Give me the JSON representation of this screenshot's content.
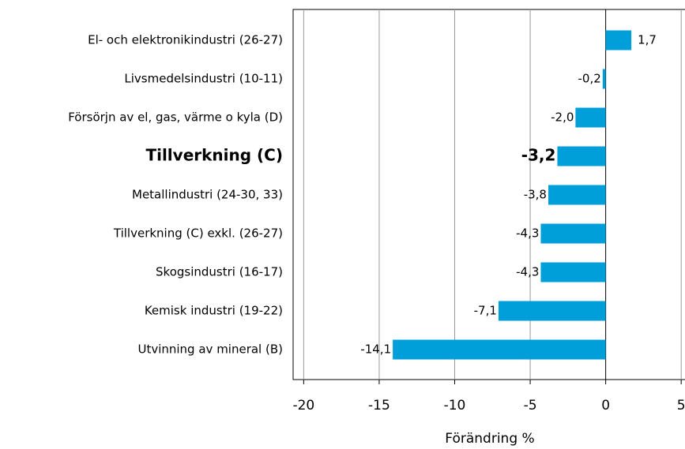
{
  "chart_data": {
    "type": "hbar",
    "categories": [
      "El- och elektronikindustri (26-27)",
      "Livsmedelsindustri (10-11)",
      "Försörjn av el, gas, värme o kyla (D)",
      "Tillverkning (C)",
      "Metallindustri (24-30, 33)",
      "Tillverkning (C) exkl. (26-27)",
      "Skogsindustri (16-17)",
      "Kemisk industri (19-22)",
      "Utvinning av mineral (B)"
    ],
    "values": [
      1.7,
      -0.2,
      -2.0,
      -3.2,
      -3.8,
      -4.3,
      -4.3,
      -7.1,
      -14.1
    ],
    "value_labels": [
      "1,7",
      "-0,2",
      "-2,0",
      "-3,2",
      "-3,8",
      "-4,3",
      "-4,3",
      "-7,1",
      "-14,1"
    ],
    "color": "#009fda",
    "highlight_index": 3,
    "xlabel": "Förändring %",
    "xlim": [
      -20.7,
      5.2
    ],
    "xticks": [
      -20,
      -15,
      -10,
      -5,
      0,
      5
    ],
    "grid": true
  }
}
